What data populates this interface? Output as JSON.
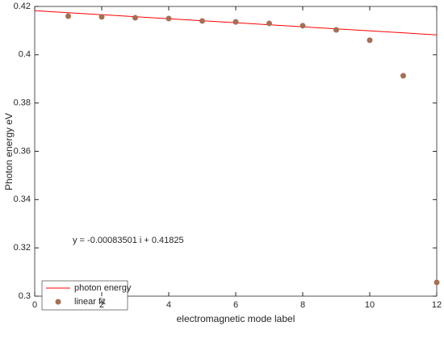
{
  "chart_data": {
    "type": "scatter",
    "xlabel": "electromagnetic mode label",
    "ylabel": "Photon energy eV",
    "annotation": "y = -0.00083501 i + 0.41825",
    "xlim": [
      0,
      12
    ],
    "xticks": [
      0,
      2,
      4,
      6,
      8,
      10,
      12
    ],
    "ylim": [
      0.3,
      0.42
    ],
    "yticks": [
      0.3,
      0.32,
      0.34,
      0.36,
      0.38,
      0.4,
      0.42
    ],
    "legend": "lower left",
    "series": [
      {
        "name": "photon energy",
        "type": "line",
        "color": "#ff0000",
        "x": [
          0,
          12
        ],
        "values": [
          0.41825,
          0.40823
        ]
      },
      {
        "name": "linear fit",
        "type": "scatter",
        "color": "#a66f55",
        "x": [
          1,
          2,
          3,
          4,
          5,
          6,
          7,
          8,
          9,
          10,
          11,
          12
        ],
        "values": [
          0.416,
          0.4157,
          0.4153,
          0.415,
          0.414,
          0.4136,
          0.413,
          0.412,
          0.4103,
          0.406,
          0.3913,
          0.3057
        ]
      }
    ]
  }
}
